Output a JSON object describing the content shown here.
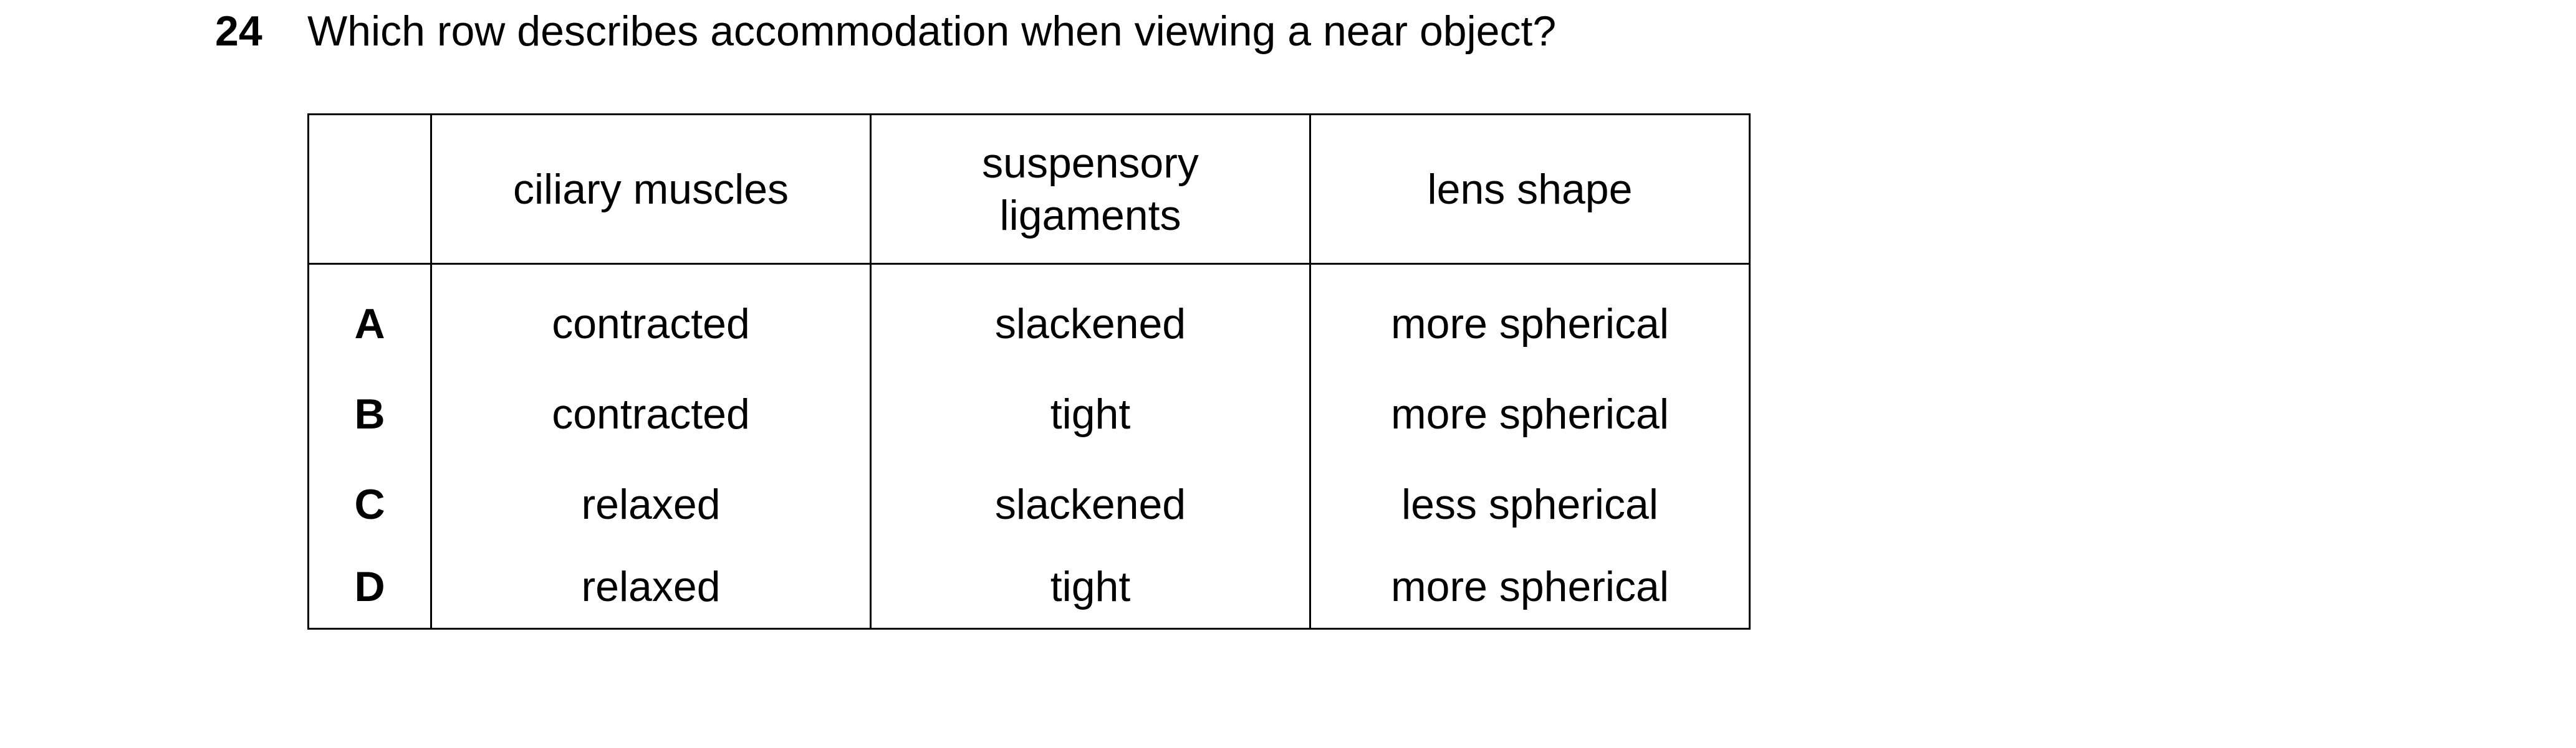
{
  "question": {
    "number": "24",
    "text": "Which row describes accommodation when viewing a near object?"
  },
  "table": {
    "headers": [
      "",
      "ciliary muscles",
      "suspensory\nligaments",
      "lens shape"
    ],
    "rows": [
      {
        "option": "A",
        "ciliary_muscles": "contracted",
        "suspensory_ligaments": "slackened",
        "lens_shape": "more spherical"
      },
      {
        "option": "B",
        "ciliary_muscles": "contracted",
        "suspensory_ligaments": "tight",
        "lens_shape": "more spherical"
      },
      {
        "option": "C",
        "ciliary_muscles": "relaxed",
        "suspensory_ligaments": "slackened",
        "lens_shape": "less spherical"
      },
      {
        "option": "D",
        "ciliary_muscles": "relaxed",
        "suspensory_ligaments": "tight",
        "lens_shape": "more spherical"
      }
    ]
  }
}
